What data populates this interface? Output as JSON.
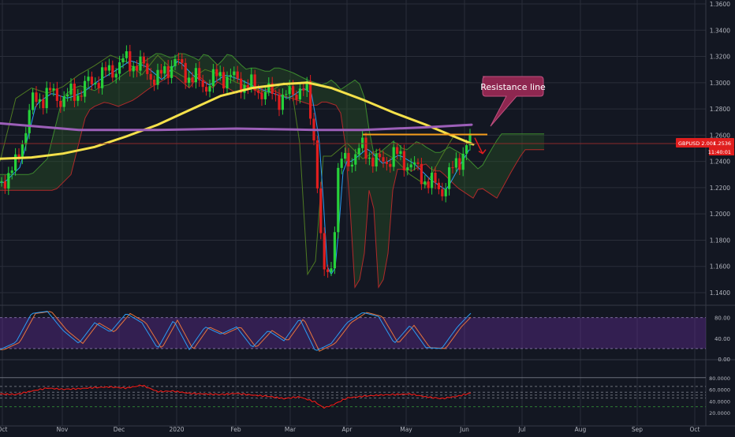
{
  "colors": {
    "background": "#131722",
    "grid": "#2a2e39",
    "axis_text": "#b2b5be",
    "candle_up": "#26d13a",
    "candle_down": "#e01e1e",
    "ma_yellow": "#f5e14a",
    "ma_purple": "#9c5fb8",
    "tenkan_blue": "#2a9df4",
    "chikou_green": "#4e7a22",
    "cloud_green": "#2f5f24",
    "cloud_red": "#6a1f24",
    "resistance_orange": "#f59c1b",
    "callout_bg": "#8e2750",
    "price_badge": "#e01e1e",
    "stoch_band": "#5b2a8c",
    "stoch_k": "#2a9df4",
    "stoch_d": "#e8743b",
    "rsi_red": "#e01e1e"
  },
  "chart_data": [
    {
      "type": "candlestick",
      "symbol": "GBPUSD",
      "x_ticks": [
        "Oct",
        "Nov",
        "Dec",
        "2020",
        "Feb",
        "Mar",
        "Apr",
        "May",
        "Jun",
        "Jul",
        "Aug",
        "Sep",
        "Oct"
      ],
      "y_ticks": [
        1.14,
        1.16,
        1.18,
        1.2,
        1.22,
        1.24,
        1.26,
        1.28,
        1.3,
        1.32,
        1.34,
        1.36
      ],
      "y_tick_labels": [
        "1.1400",
        "1.1600",
        "1.1800",
        "1.2000",
        "1.2200",
        "1.2400",
        "1.2600",
        "1.2800",
        "1.3000",
        "1.3200",
        "1.3400",
        "1.3600"
      ],
      "ylim": [
        1.132,
        1.365
      ],
      "close_series": [
        [
          0,
          1.224
        ],
        [
          20,
          1.236
        ],
        [
          40,
          1.284
        ],
        [
          60,
          1.292
        ],
        [
          80,
          1.288
        ],
        [
          100,
          1.293
        ],
        [
          120,
          1.302
        ],
        [
          140,
          1.309
        ],
        [
          160,
          1.317
        ],
        [
          180,
          1.312
        ],
        [
          200,
          1.302
        ],
        [
          220,
          1.317
        ],
        [
          240,
          1.305
        ],
        [
          260,
          1.298
        ],
        [
          280,
          1.306
        ],
        [
          300,
          1.302
        ],
        [
          320,
          1.296
        ],
        [
          340,
          1.292
        ],
        [
          360,
          1.288
        ],
        [
          380,
          1.296
        ],
        [
          390,
          1.291
        ],
        [
          400,
          1.25
        ],
        [
          410,
          1.15
        ],
        [
          420,
          1.16
        ],
        [
          430,
          1.24
        ],
        [
          440,
          1.24
        ],
        [
          460,
          1.25
        ],
        [
          480,
          1.238
        ],
        [
          500,
          1.245
        ],
        [
          520,
          1.238
        ],
        [
          540,
          1.226
        ],
        [
          560,
          1.218
        ],
        [
          580,
          1.24
        ],
        [
          595,
          1.255
        ]
      ],
      "moving_averages": [
        {
          "name": "MA yellow",
          "points": [
            [
              0,
              1.242
            ],
            [
              40,
              1.243
            ],
            [
              80,
              1.246
            ],
            [
              120,
              1.251
            ],
            [
              160,
              1.259
            ],
            [
              200,
              1.268
            ],
            [
              240,
              1.279
            ],
            [
              280,
              1.29
            ],
            [
              320,
              1.296
            ],
            [
              360,
              1.299
            ],
            [
              390,
              1.3
            ],
            [
              420,
              1.296
            ],
            [
              460,
              1.287
            ],
            [
              500,
              1.277
            ],
            [
              540,
              1.268
            ],
            [
              580,
              1.258
            ],
            [
              600,
              1.253
            ]
          ]
        },
        {
          "name": "MA purple",
          "points": [
            [
              0,
              1.269
            ],
            [
              100,
              1.264
            ],
            [
              200,
              1.264
            ],
            [
              300,
              1.265
            ],
            [
              400,
              1.264
            ],
            [
              460,
              1.264
            ],
            [
              540,
              1.266
            ],
            [
              598,
              1.268
            ]
          ]
        }
      ],
      "resistance_line": {
        "x_start": 460,
        "x_end": 618,
        "value": 1.2605
      },
      "projection_arrow": {
        "from": [
          602,
          1.258
        ],
        "to": [
          612,
          1.246
        ]
      },
      "horizontal_level": 1.2536,
      "price_badge": {
        "label": "GBPUSD 2.00£",
        "value": "1.2536",
        "countdown": "11:40:01"
      },
      "annotations": [
        {
          "text": "Resistance line"
        }
      ]
    },
    {
      "type": "line",
      "name": "stochastic",
      "y_ticks": [
        0,
        40,
        80
      ],
      "y_tick_labels": [
        "0.00",
        "40.00",
        "80.00"
      ],
      "ylim": [
        0,
        100
      ],
      "band": [
        20,
        80
      ],
      "k_points": [
        [
          0,
          18
        ],
        [
          20,
          32
        ],
        [
          40,
          88
        ],
        [
          60,
          92
        ],
        [
          80,
          55
        ],
        [
          100,
          30
        ],
        [
          120,
          70
        ],
        [
          140,
          52
        ],
        [
          160,
          88
        ],
        [
          180,
          70
        ],
        [
          200,
          20
        ],
        [
          220,
          75
        ],
        [
          240,
          18
        ],
        [
          260,
          62
        ],
        [
          280,
          48
        ],
        [
          300,
          62
        ],
        [
          320,
          22
        ],
        [
          340,
          55
        ],
        [
          360,
          35
        ],
        [
          380,
          78
        ],
        [
          400,
          15
        ],
        [
          420,
          30
        ],
        [
          440,
          70
        ],
        [
          460,
          90
        ],
        [
          480,
          82
        ],
        [
          500,
          30
        ],
        [
          520,
          65
        ],
        [
          540,
          22
        ],
        [
          560,
          20
        ],
        [
          580,
          62
        ],
        [
          598,
          90
        ]
      ]
    },
    {
      "type": "line",
      "name": "rsi",
      "y_ticks": [
        20,
        40,
        60,
        80
      ],
      "y_tick_labels": [
        "20.0000",
        "40.0000",
        "60.0000",
        "80.0000"
      ],
      "ylim": [
        14,
        86
      ],
      "levels": [
        30,
        45,
        50,
        55
      ],
      "points": [
        [
          0,
          52
        ],
        [
          20,
          51
        ],
        [
          40,
          57
        ],
        [
          60,
          62
        ],
        [
          80,
          60
        ],
        [
          100,
          61
        ],
        [
          120,
          63
        ],
        [
          140,
          64
        ],
        [
          160,
          62
        ],
        [
          180,
          67
        ],
        [
          200,
          56
        ],
        [
          220,
          57
        ],
        [
          240,
          53
        ],
        [
          260,
          52
        ],
        [
          280,
          51
        ],
        [
          300,
          53
        ],
        [
          320,
          50
        ],
        [
          340,
          48
        ],
        [
          360,
          44
        ],
        [
          380,
          47
        ],
        [
          400,
          38
        ],
        [
          410,
          28
        ],
        [
          420,
          32
        ],
        [
          440,
          45
        ],
        [
          460,
          48
        ],
        [
          480,
          50
        ],
        [
          500,
          51
        ],
        [
          520,
          52
        ],
        [
          540,
          47
        ],
        [
          560,
          44
        ],
        [
          580,
          48
        ],
        [
          598,
          54
        ]
      ]
    }
  ]
}
